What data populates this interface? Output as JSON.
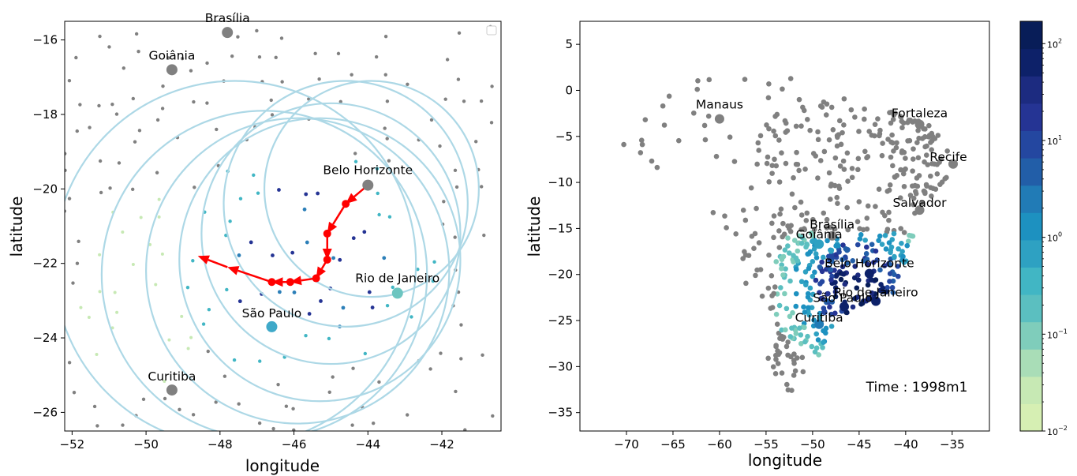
{
  "chart_data": [
    {
      "type": "scatter",
      "title": "",
      "xlabel": "longitude",
      "ylabel": "latitude",
      "xlim": [
        -52.2,
        -40.4
      ],
      "ylim": [
        -26.5,
        -15.5
      ],
      "xticks": [
        "−52",
        "−50",
        "−48",
        "−46",
        "−44",
        "−42"
      ],
      "xtick_values": [
        -52,
        -50,
        -48,
        -46,
        -44,
        -42
      ],
      "yticks": [
        "−16",
        "−18",
        "−20",
        "−22",
        "−24",
        "−26"
      ],
      "ytick_values": [
        -16,
        -18,
        -20,
        -22,
        -24,
        -26
      ],
      "grid": false,
      "legend": "top-right (empty)",
      "colors": {
        "inactive": "#808080",
        "circle": "#add8e6",
        "arrow": "#ff0000",
        "light": "#c7e9b4",
        "mid": "#41b6c4",
        "dark": "#253494"
      },
      "cities": [
        {
          "name": "Brasília",
          "x": -47.8,
          "y": -15.8,
          "color": "#808080"
        },
        {
          "name": "Goiânia",
          "x": -49.3,
          "y": -16.8,
          "color": "#808080"
        },
        {
          "name": "Belo Horizonte",
          "x": -44.0,
          "y": -19.9,
          "color": "#808080"
        },
        {
          "name": "Rio de Janeiro",
          "x": -43.2,
          "y": -22.8,
          "color": "#6cc5c0"
        },
        {
          "name": "São Paulo",
          "x": -46.6,
          "y": -23.7,
          "color": "#3fa9c9"
        },
        {
          "name": "Curitiba",
          "x": -49.3,
          "y": -25.4,
          "color": "#808080"
        }
      ],
      "circles": [
        {
          "cx": -43.9,
          "cy": -20.0,
          "r": 2.9
        },
        {
          "cx": -44.6,
          "cy": -20.4,
          "r": 3.3
        },
        {
          "cx": -45.0,
          "cy": -21.2,
          "r": 3.5
        },
        {
          "cx": -45.3,
          "cy": -21.9,
          "r": 3.8
        },
        {
          "cx": -45.9,
          "cy": -22.2,
          "r": 4.1
        },
        {
          "cx": -46.8,
          "cy": -22.3,
          "r": 4.4
        },
        {
          "cx": -47.6,
          "cy": -22.0,
          "r": 4.9
        }
      ],
      "trajectory": [
        {
          "x": -44.0,
          "y": -19.9
        },
        {
          "x": -44.6,
          "y": -20.4
        },
        {
          "x": -45.1,
          "y": -21.2
        },
        {
          "x": -45.1,
          "y": -21.9
        },
        {
          "x": -45.4,
          "y": -22.4
        },
        {
          "x": -46.1,
          "y": -22.5
        },
        {
          "x": -46.6,
          "y": -22.5
        },
        {
          "x": -47.8,
          "y": -22.1
        }
      ],
      "heading": {
        "x": -48.6,
        "y": -21.8
      }
    },
    {
      "type": "scatter",
      "title": "",
      "xlabel": "longitude",
      "ylabel": "latitude",
      "xlim": [
        -75,
        -31
      ],
      "ylim": [
        -37,
        7.5
      ],
      "xticks": [
        "−70",
        "−65",
        "−60",
        "−55",
        "−50",
        "−45",
        "−40",
        "−35"
      ],
      "xtick_values": [
        -70,
        -65,
        -60,
        -55,
        -50,
        -45,
        -40,
        -35
      ],
      "yticks": [
        "5",
        "0",
        "−5",
        "−10",
        "−15",
        "−20",
        "−25",
        "−30",
        "−35"
      ],
      "ytick_values": [
        5,
        0,
        -5,
        -10,
        -15,
        -20,
        -25,
        -30,
        -35
      ],
      "annotation": "Time : 1998m1",
      "grid": false,
      "colorbar": {
        "scale": "log",
        "min": 0.01,
        "max": 170,
        "tick_base": "10",
        "tick_exponents": [
          "2",
          "1",
          "0",
          "−1",
          "−2"
        ],
        "tick_values": [
          100,
          10,
          1,
          0.1,
          0.01
        ],
        "colors_low_to_high": [
          "#d6efb3",
          "#c7e9b4",
          "#a9ddb7",
          "#7fcdbb",
          "#5bbfc0",
          "#41b6c4",
          "#2ea1c2",
          "#1d91c0",
          "#217bb6",
          "#225ea8",
          "#2447a0",
          "#253494",
          "#1c2b80",
          "#0d2169",
          "#081d58"
        ]
      },
      "cities": [
        {
          "name": "Manaus",
          "x": -60.0,
          "y": -3.1
        },
        {
          "name": "Fortaleza",
          "x": -38.5,
          "y": -3.7
        },
        {
          "name": "Recife",
          "x": -34.9,
          "y": -8.0
        },
        {
          "name": "Salvador",
          "x": -38.5,
          "y": -13.0
        },
        {
          "name": "Brasília",
          "x": -47.9,
          "y": -15.8
        },
        {
          "name": "Goiânia",
          "x": -49.3,
          "y": -16.7
        },
        {
          "name": "Belo Horizonte",
          "x": -43.9,
          "y": -19.9
        },
        {
          "name": "Rio de Janeiro",
          "x": -43.2,
          "y": -22.9
        },
        {
          "name": "São Paulo",
          "x": -46.6,
          "y": -23.5
        },
        {
          "name": "Curitiba",
          "x": -49.3,
          "y": -25.4
        }
      ]
    }
  ]
}
